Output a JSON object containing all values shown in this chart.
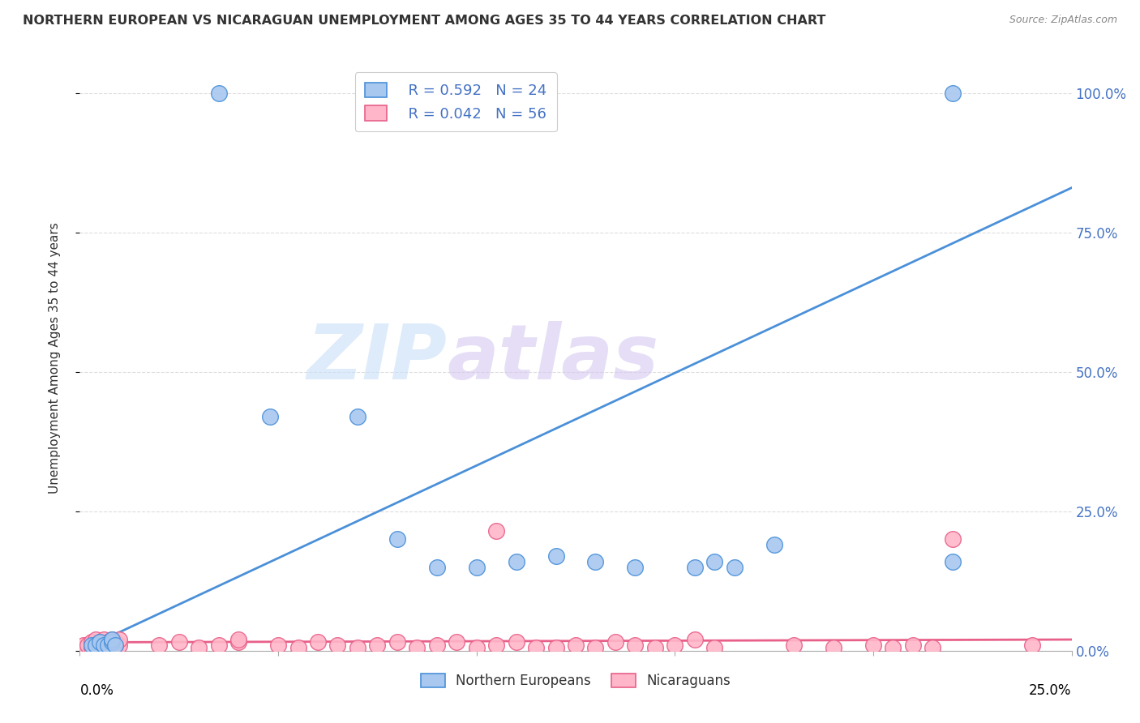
{
  "title": "NORTHERN EUROPEAN VS NICARAGUAN UNEMPLOYMENT AMONG AGES 35 TO 44 YEARS CORRELATION CHART",
  "source": "Source: ZipAtlas.com",
  "ylabel": "Unemployment Among Ages 35 to 44 years",
  "yticks": [
    0.0,
    0.25,
    0.5,
    0.75,
    1.0
  ],
  "ytick_labels": [
    "0.0%",
    "25.0%",
    "50.0%",
    "75.0%",
    "100.0%"
  ],
  "xtick_labels": [
    "0.0%",
    "",
    "",
    "",
    "",
    "25.0%"
  ],
  "xtick_vals": [
    0.0,
    0.05,
    0.1,
    0.15,
    0.2,
    0.25
  ],
  "xlim": [
    0.0,
    0.25
  ],
  "ylim": [
    0.0,
    1.05
  ],
  "blue_color": "#a8c8f0",
  "blue_edge_color": "#4a90d9",
  "blue_line_color": "#4a90d9",
  "pink_color": "#ffb6c8",
  "pink_edge_color": "#e8608a",
  "pink_line_color": "#e8608a",
  "watermark_zip_color": "#c8dff8",
  "watermark_atlas_color": "#d4c8f0",
  "legend_R1": "R = 0.592",
  "legend_N1": "N = 24",
  "legend_R2": "R = 0.042",
  "legend_N2": "N = 56",
  "legend_label1": "Northern Europeans",
  "legend_label2": "Nicaraguans",
  "blue_points_x": [
    0.035,
    0.003,
    0.004,
    0.005,
    0.006,
    0.007,
    0.008,
    0.008,
    0.009,
    0.048,
    0.07,
    0.08,
    0.09,
    0.1,
    0.11,
    0.12,
    0.13,
    0.14,
    0.155,
    0.16,
    0.165,
    0.175,
    0.22,
    0.22
  ],
  "blue_points_y": [
    1.0,
    0.01,
    0.01,
    0.015,
    0.01,
    0.01,
    0.015,
    0.02,
    0.01,
    0.42,
    0.42,
    0.2,
    0.15,
    0.15,
    0.16,
    0.17,
    0.16,
    0.15,
    0.15,
    0.16,
    0.15,
    0.19,
    1.0,
    0.16
  ],
  "pink_points_x": [
    0.001,
    0.002,
    0.003,
    0.003,
    0.004,
    0.004,
    0.005,
    0.005,
    0.006,
    0.006,
    0.007,
    0.007,
    0.008,
    0.008,
    0.009,
    0.009,
    0.01,
    0.01,
    0.02,
    0.025,
    0.03,
    0.035,
    0.04,
    0.04,
    0.05,
    0.055,
    0.06,
    0.065,
    0.07,
    0.075,
    0.08,
    0.085,
    0.09,
    0.095,
    0.1,
    0.105,
    0.11,
    0.115,
    0.12,
    0.125,
    0.13,
    0.135,
    0.14,
    0.145,
    0.15,
    0.155,
    0.16,
    0.18,
    0.19,
    0.2,
    0.205,
    0.21,
    0.215,
    0.22,
    0.24,
    0.105
  ],
  "pink_points_y": [
    0.01,
    0.01,
    0.005,
    0.015,
    0.01,
    0.02,
    0.005,
    0.015,
    0.005,
    0.02,
    0.005,
    0.015,
    0.01,
    0.02,
    0.005,
    0.015,
    0.01,
    0.02,
    0.01,
    0.015,
    0.005,
    0.01,
    0.015,
    0.02,
    0.01,
    0.005,
    0.015,
    0.01,
    0.005,
    0.01,
    0.015,
    0.005,
    0.01,
    0.015,
    0.005,
    0.01,
    0.015,
    0.005,
    0.005,
    0.01,
    0.005,
    0.015,
    0.01,
    0.005,
    0.01,
    0.02,
    0.005,
    0.01,
    0.005,
    0.01,
    0.005,
    0.01,
    0.005,
    0.2,
    0.01,
    0.215
  ],
  "background_color": "#ffffff",
  "grid_color": "#dddddd",
  "blue_line_x": [
    0.0,
    0.25
  ],
  "blue_line_y": [
    0.0,
    0.83
  ],
  "pink_line_x": [
    0.0,
    0.25
  ],
  "pink_line_y": [
    0.015,
    0.02
  ]
}
